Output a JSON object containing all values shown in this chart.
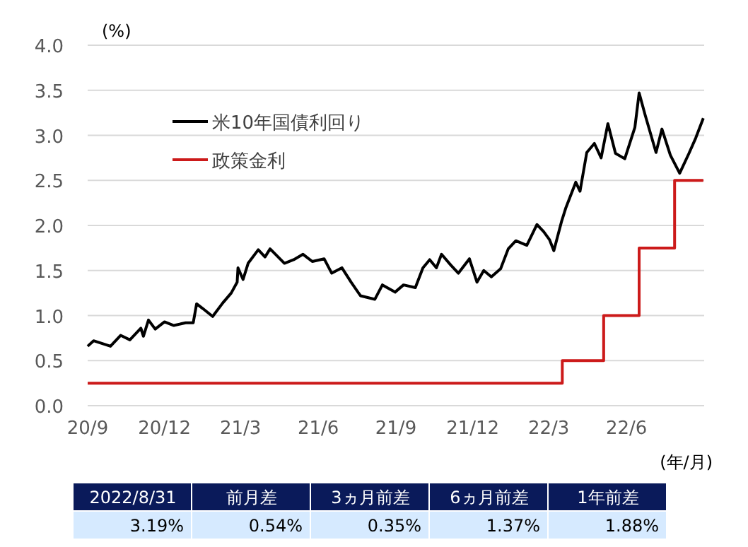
{
  "chart_data": {
    "type": "line",
    "ylabel": "(%)",
    "xlabel": "(年/月)",
    "xlim": [
      "2020-09-01",
      "2022-09-01"
    ],
    "xticks": [
      {
        "value": "2020-09-01",
        "label": "20/9"
      },
      {
        "value": "2020-12-01",
        "label": "20/12"
      },
      {
        "value": "2021-03-01",
        "label": "21/3"
      },
      {
        "value": "2021-06-01",
        "label": "21/6"
      },
      {
        "value": "2021-09-01",
        "label": "21/9"
      },
      {
        "value": "2021-12-01",
        "label": "21/12"
      },
      {
        "value": "2022-03-01",
        "label": "22/3"
      },
      {
        "value": "2022-06-01",
        "label": "22/6"
      }
    ],
    "ylim": [
      0,
      4
    ],
    "yticks": [
      {
        "value": 0,
        "label": "0.0"
      },
      {
        "value": 0.5,
        "label": "0.5"
      },
      {
        "value": 1,
        "label": "1.0"
      },
      {
        "value": 1.5,
        "label": "1.5"
      },
      {
        "value": 2,
        "label": "2.0"
      },
      {
        "value": 2.5,
        "label": "2.5"
      },
      {
        "value": 3,
        "label": "3.0"
      },
      {
        "value": 3.5,
        "label": "3.5"
      },
      {
        "value": 4,
        "label": "4.0"
      }
    ],
    "grid": "y",
    "legend": "top left",
    "series": [
      {
        "name": "米10年国債利回り",
        "color": "#000000",
        "x": [
          "2020-09-01",
          "2020-09-08",
          "2020-09-28",
          "2020-10-10",
          "2020-10-21",
          "2020-11-03",
          "2020-11-06",
          "2020-11-12",
          "2020-11-20",
          "2020-12-01",
          "2020-12-12",
          "2020-12-26",
          "2021-01-04",
          "2021-01-08",
          "2021-01-15",
          "2021-01-27",
          "2021-02-08",
          "2021-02-18",
          "2021-02-25",
          "2021-02-26",
          "2021-03-04",
          "2021-03-10",
          "2021-03-22",
          "2021-03-30",
          "2021-04-05",
          "2021-04-22",
          "2021-05-03",
          "2021-05-14",
          "2021-05-25",
          "2021-06-08",
          "2021-06-17",
          "2021-06-29",
          "2021-07-10",
          "2021-07-21",
          "2021-08-07",
          "2021-08-16",
          "2021-08-31",
          "2021-09-10",
          "2021-09-24",
          "2021-10-03",
          "2021-10-11",
          "2021-10-19",
          "2021-10-25",
          "2021-11-05",
          "2021-11-14",
          "2021-11-27",
          "2021-12-06",
          "2021-12-14",
          "2021-12-23",
          "2022-01-03",
          "2022-01-12",
          "2022-01-21",
          "2022-02-03",
          "2022-02-15",
          "2022-02-23",
          "2022-03-02",
          "2022-03-07",
          "2022-03-16",
          "2022-03-21",
          "2022-04-02",
          "2022-04-07",
          "2022-04-15",
          "2022-04-24",
          "2022-05-02",
          "2022-05-10",
          "2022-05-19",
          "2022-05-30",
          "2022-06-11",
          "2022-06-16",
          "2022-06-23",
          "2022-07-06",
          "2022-07-13",
          "2022-07-23",
          "2022-08-03",
          "2022-08-14",
          "2022-08-22",
          "2022-08-31"
        ],
        "values": [
          0.66,
          0.72,
          0.66,
          0.78,
          0.73,
          0.86,
          0.77,
          0.95,
          0.85,
          0.93,
          0.89,
          0.92,
          0.92,
          1.13,
          1.08,
          0.99,
          1.14,
          1.25,
          1.37,
          1.53,
          1.4,
          1.58,
          1.73,
          1.65,
          1.74,
          1.58,
          1.62,
          1.68,
          1.6,
          1.63,
          1.47,
          1.53,
          1.37,
          1.22,
          1.18,
          1.34,
          1.26,
          1.34,
          1.31,
          1.53,
          1.62,
          1.53,
          1.68,
          1.56,
          1.47,
          1.63,
          1.37,
          1.5,
          1.43,
          1.52,
          1.74,
          1.83,
          1.78,
          2.01,
          1.93,
          1.84,
          1.72,
          2.04,
          2.19,
          2.48,
          2.38,
          2.81,
          2.91,
          2.75,
          3.13,
          2.8,
          2.74,
          3.09,
          3.47,
          3.23,
          2.81,
          3.07,
          2.78,
          2.58,
          2.8,
          2.97,
          3.19
        ]
      },
      {
        "name": "政策金利",
        "color": "#cc1a1a",
        "type": "step",
        "x": [
          "2020-09-01",
          "2022-03-17",
          "2022-05-05",
          "2022-06-16",
          "2022-07-28",
          "2022-08-31"
        ],
        "values": [
          0.25,
          0.5,
          1.0,
          1.75,
          2.5,
          2.5
        ]
      }
    ],
    "annotations": [
      "2022/8/31",
      "前月差",
      "3ヵ月前差",
      "6ヵ月前差",
      "1年前差",
      "3.19%",
      "0.54%",
      "0.35%",
      "1.37%",
      "1.88%"
    ]
  }
}
